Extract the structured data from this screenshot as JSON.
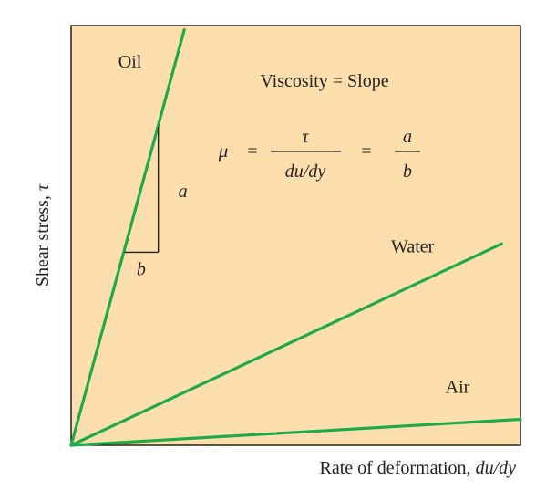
{
  "chart_data": {
    "type": "line",
    "title": "",
    "xlabel": "Rate of deformation, ",
    "xlabel_italic": "du/dy",
    "ylabel": "Shear stress, ",
    "ylabel_italic": "τ",
    "xlim": [
      0,
      10
    ],
    "ylim": [
      0,
      10
    ],
    "grid": false,
    "legend": "none",
    "background_color": "#fddfad",
    "line_color": "#1faa4a",
    "series": [
      {
        "name": "Oil",
        "x": [
          0,
          2.52
        ],
        "y": [
          0,
          9.9
        ]
      },
      {
        "name": "Water",
        "x": [
          0,
          9.58
        ],
        "y": [
          0,
          4.8
        ]
      },
      {
        "name": "Air",
        "x": [
          0,
          10.0
        ],
        "y": [
          0,
          0.62
        ]
      }
    ],
    "slope_triangle": {
      "series": "Oil",
      "x": [
        1.18,
        1.94
      ],
      "y": [
        4.6,
        7.58
      ],
      "rise_label": "a",
      "run_label": "b"
    },
    "annotations": {
      "heading": "Viscosity = Slope",
      "formula": {
        "mu": "μ",
        "equals": "=",
        "numerator": "τ",
        "denominator": "du/dy",
        "equals2": "=",
        "ratio_num": "a",
        "ratio_den": "b"
      }
    }
  }
}
